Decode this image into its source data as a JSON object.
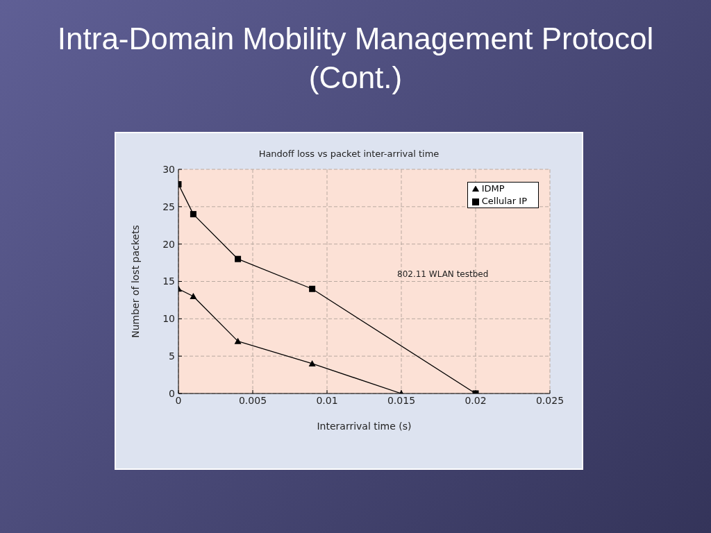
{
  "chart_data": {
    "type": "line",
    "title": "Intra-Domain Mobility Management Protocol (Cont.)",
    "subtitle": "Handoff loss vs packet inter-arrival time",
    "xlabel": "Interarrival time (s)",
    "ylabel": "Number of lost packets",
    "annotations": [
      "802.11 WLAN testbed"
    ],
    "series": [
      {
        "name": "IDMP",
        "color": "#000000",
        "marker": "triangle",
        "x": [
          0,
          0.001,
          0.004,
          0.009,
          0.015
        ],
        "values": [
          14,
          13,
          7,
          4,
          0
        ]
      },
      {
        "name": "Cellular IP",
        "color": "#000000",
        "marker": "square",
        "x": [
          0,
          0.001,
          0.004,
          0.009,
          0.02
        ],
        "values": [
          28,
          24,
          18,
          14,
          0
        ]
      }
    ],
    "xlim": [
      0,
      0.025
    ],
    "xticks": [
      0,
      0.005,
      0.01,
      0.015,
      0.02,
      0.025
    ],
    "ylim": [
      0,
      30
    ],
    "yticks": [
      0,
      5,
      10,
      15,
      20,
      25,
      30
    ],
    "grid": true,
    "legend": "top right",
    "line_style": "solid"
  }
}
